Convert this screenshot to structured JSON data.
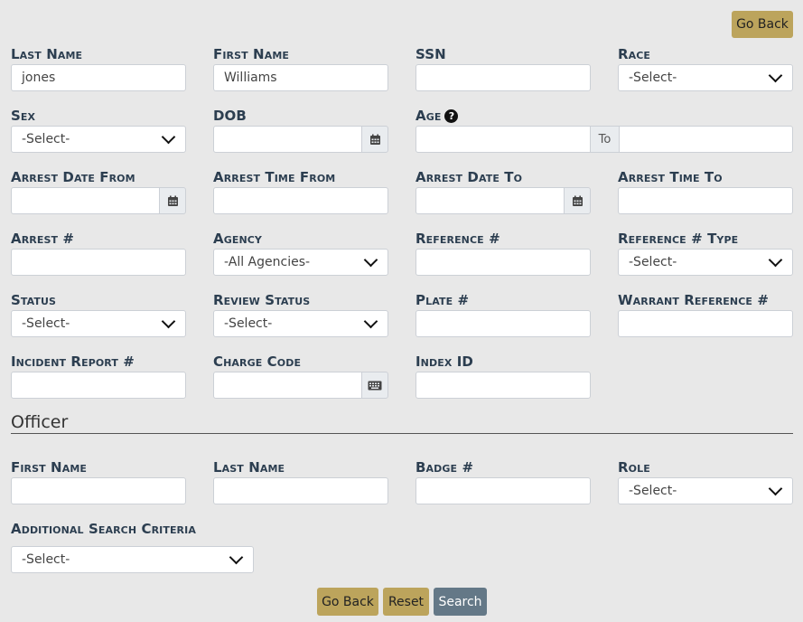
{
  "header": {
    "go_back_label": "Go Back"
  },
  "fields": [
    {
      "id": "last-name",
      "label": "Last Name",
      "type": "text",
      "value": "jones"
    },
    {
      "id": "first-name",
      "label": "First Name",
      "type": "text",
      "value": "Williams"
    },
    {
      "id": "ssn",
      "label": "SSN",
      "type": "text",
      "value": ""
    },
    {
      "id": "race",
      "label": "Race",
      "type": "select",
      "value": "-Select-"
    },
    {
      "id": "sex",
      "label": "Sex",
      "type": "select",
      "value": "-Select-"
    },
    {
      "id": "dob",
      "label": "DOB",
      "type": "date",
      "value": ""
    },
    {
      "id": "age",
      "label": "Age",
      "type": "range",
      "value": "",
      "value_to": "",
      "addon": "To",
      "help_icon": "question-circle-icon"
    },
    {
      "id": "arrest-date-from",
      "label": "Arrest Date From",
      "type": "date",
      "value": ""
    },
    {
      "id": "arrest-time-from",
      "label": "Arrest Time From",
      "type": "text",
      "value": ""
    },
    {
      "id": "arrest-date-to",
      "label": "Arrest Date To",
      "type": "date",
      "value": ""
    },
    {
      "id": "arrest-time-to",
      "label": "Arrest Time To",
      "type": "text",
      "value": ""
    },
    {
      "id": "arrest-number",
      "label": "Arrest #",
      "type": "text",
      "value": ""
    },
    {
      "id": "agency",
      "label": "Agency",
      "type": "select",
      "value": "-All Agencies-"
    },
    {
      "id": "reference-number",
      "label": "Reference #",
      "type": "text",
      "value": ""
    },
    {
      "id": "reference-number-type",
      "label": "Reference # Type",
      "type": "select",
      "value": "-Select-"
    },
    {
      "id": "status",
      "label": "Status",
      "type": "select",
      "value": "-Select-"
    },
    {
      "id": "review-status",
      "label": "Review Status",
      "type": "select",
      "value": "-Select-"
    },
    {
      "id": "plate-number",
      "label": "Plate #",
      "type": "text",
      "value": ""
    },
    {
      "id": "warrant-reference-number",
      "label": "Warrant Reference #",
      "type": "text",
      "value": ""
    },
    {
      "id": "incident-report-number",
      "label": "Incident Report #",
      "type": "text",
      "value": ""
    },
    {
      "id": "charge-code",
      "label": "Charge Code",
      "type": "keyboard",
      "value": ""
    },
    {
      "id": "index-id",
      "label": "Index ID",
      "type": "text",
      "value": ""
    }
  ],
  "officer": {
    "section_title": "Officer",
    "fields": [
      {
        "id": "officer-first-name",
        "label": "First Name",
        "type": "text",
        "value": ""
      },
      {
        "id": "officer-last-name",
        "label": "Last Name",
        "type": "text",
        "value": ""
      },
      {
        "id": "badge-number",
        "label": "Badge #",
        "type": "text",
        "value": ""
      },
      {
        "id": "role",
        "label": "Role",
        "type": "select",
        "value": "-Select-"
      }
    ]
  },
  "additional": {
    "label": "Additional Search Criteria",
    "value": "-Select-"
  },
  "footer": {
    "go_back_label": "Go Back",
    "reset_label": "Reset",
    "search_label": "Search"
  },
  "colors": {
    "label": "#2c3e50",
    "gold_button": "#bca45c",
    "search_button": "#647887",
    "background": "#e8e8e8"
  }
}
